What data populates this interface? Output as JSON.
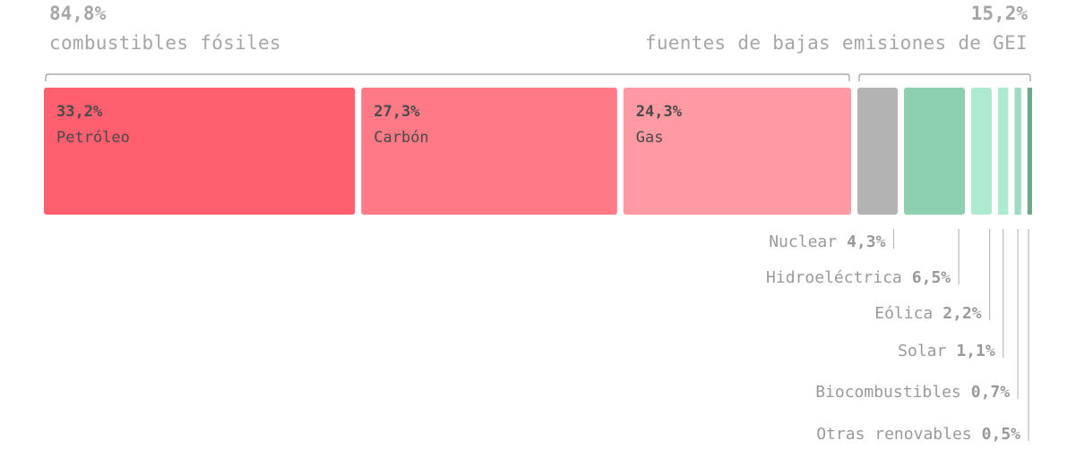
{
  "groups": {
    "fossil": {
      "pct": "84,8%",
      "label": "combustibles fósiles"
    },
    "low": {
      "pct": "15,2%",
      "label": "fuentes de bajas emisiones de GEI"
    }
  },
  "chart_data": {
    "type": "bar",
    "orientation": "horizontal-stacked",
    "unit": "%",
    "categories": [
      "Petróleo",
      "Carbón",
      "Gas",
      "Nuclear",
      "Hidroeléctrica",
      "Eólica",
      "Solar",
      "Biocombustibles",
      "Otras renovables"
    ],
    "values": [
      33.2,
      27.3,
      24.3,
      4.3,
      6.5,
      2.2,
      1.1,
      0.7,
      0.5
    ],
    "labels": [
      "33,2%",
      "27,3%",
      "24,3%",
      "4,3%",
      "6,5%",
      "2,2%",
      "1,1%",
      "0,7%",
      "0,5%"
    ],
    "groups": [
      {
        "label": "combustibles fósiles",
        "value": "84,8%",
        "members": [
          "Petróleo",
          "Carbón",
          "Gas"
        ]
      },
      {
        "label": "fuentes de bajas emisiones de GEI",
        "value": "15,2%",
        "members": [
          "Nuclear",
          "Hidroeléctrica",
          "Eólica",
          "Solar",
          "Biocombustibles",
          "Otras renovables"
        ]
      }
    ],
    "colors": [
      "#ff5f6e",
      "#ff7a86",
      "#ff9aa4",
      "#b3b3b3",
      "#8dd0b0",
      "#aeead0",
      "#aeead0",
      "#9cdcc0",
      "#6fa98d"
    ]
  }
}
